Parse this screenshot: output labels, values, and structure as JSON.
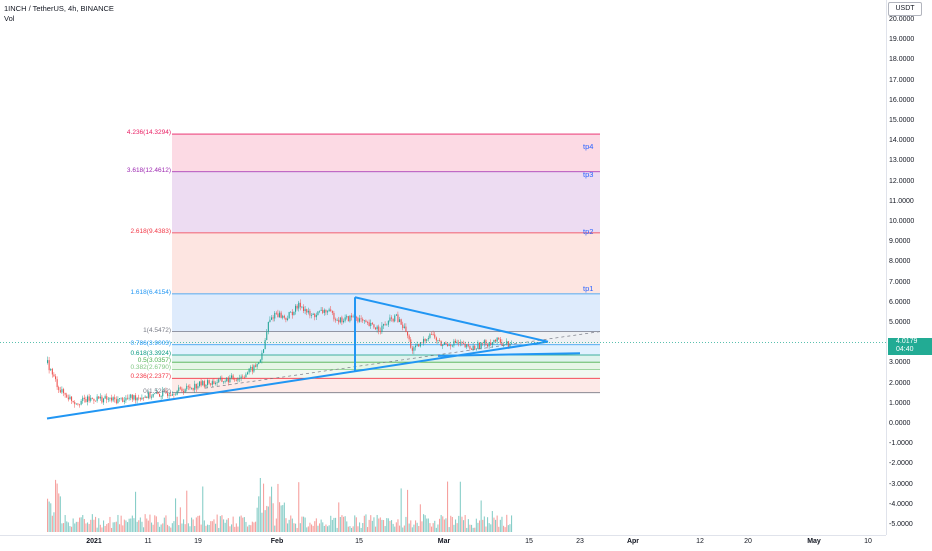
{
  "header": {
    "title": "1INCH / TetherUS, 4h, BINANCE",
    "indicator": "Vol"
  },
  "currency_button": "USDT",
  "price_tag": {
    "value": "4.0179",
    "countdown": "04:40"
  },
  "y_axis_ticks": [
    "20.0000",
    "19.0000",
    "18.0000",
    "17.0000",
    "16.0000",
    "15.0000",
    "14.0000",
    "13.0000",
    "12.0000",
    "11.0000",
    "10.0000",
    "9.0000",
    "8.0000",
    "7.0000",
    "6.0000",
    "5.0000",
    "4.0000",
    "3.0000",
    "2.0000",
    "1.0000",
    "0.0000",
    "-1.0000",
    "-2.0000",
    "-3.0000",
    "-4.0000",
    "-5.0000"
  ],
  "x_axis_ticks": [
    {
      "label": "2021",
      "bold": true
    },
    {
      "label": "11",
      "bold": false
    },
    {
      "label": "19",
      "bold": false
    },
    {
      "label": "Feb",
      "bold": true
    },
    {
      "label": "15",
      "bold": false
    },
    {
      "label": "Mar",
      "bold": true
    },
    {
      "label": "15",
      "bold": false
    },
    {
      "label": "23",
      "bold": false
    },
    {
      "label": "Apr",
      "bold": true
    },
    {
      "label": "12",
      "bold": false
    },
    {
      "label": "20",
      "bold": false
    },
    {
      "label": "May",
      "bold": true
    },
    {
      "label": "10",
      "bold": false
    }
  ],
  "fib_levels": [
    {
      "label": "4.236(14.3294)",
      "color": "#e91e63",
      "fill": "#fcd3df"
    },
    {
      "label": "3.618(12.4612)",
      "color": "#9c27b0",
      "fill": "#ead6f0"
    },
    {
      "label": "2.618(9.4383)",
      "color": "#f23645",
      "fill": "#fde0dc"
    },
    {
      "label": "1.618(6.4154)",
      "color": "#2196f3",
      "fill": "#d8e8fb"
    },
    {
      "label": "1(4.5472)",
      "color": "#787b86",
      "fill": "#eceef2"
    },
    {
      "label": "0.786(3.9003)",
      "color": "#2196f3",
      "fill": "#dcefff"
    },
    {
      "label": "0.618(3.3924)",
      "color": "#089981",
      "fill": "#d9f1ea"
    },
    {
      "label": "0.5(3.0357)",
      "color": "#4caf50",
      "fill": "#e3f4e3"
    },
    {
      "label": "0.382(2.6790)",
      "color": "#81c784",
      "fill": "#eef7ee"
    },
    {
      "label": "0.236(2.2377)",
      "color": "#f23645",
      "fill": "#fde6e4"
    },
    {
      "label": "0(1.5242)",
      "color": "#787b86",
      "fill": "#ffffff"
    }
  ],
  "targets": [
    "tp4",
    "tp3",
    "tp2",
    "tp1"
  ],
  "colors": {
    "up": "#26a69a",
    "down": "#ef5350",
    "trend": "#2196f3",
    "price_line": "#22ab94"
  }
}
